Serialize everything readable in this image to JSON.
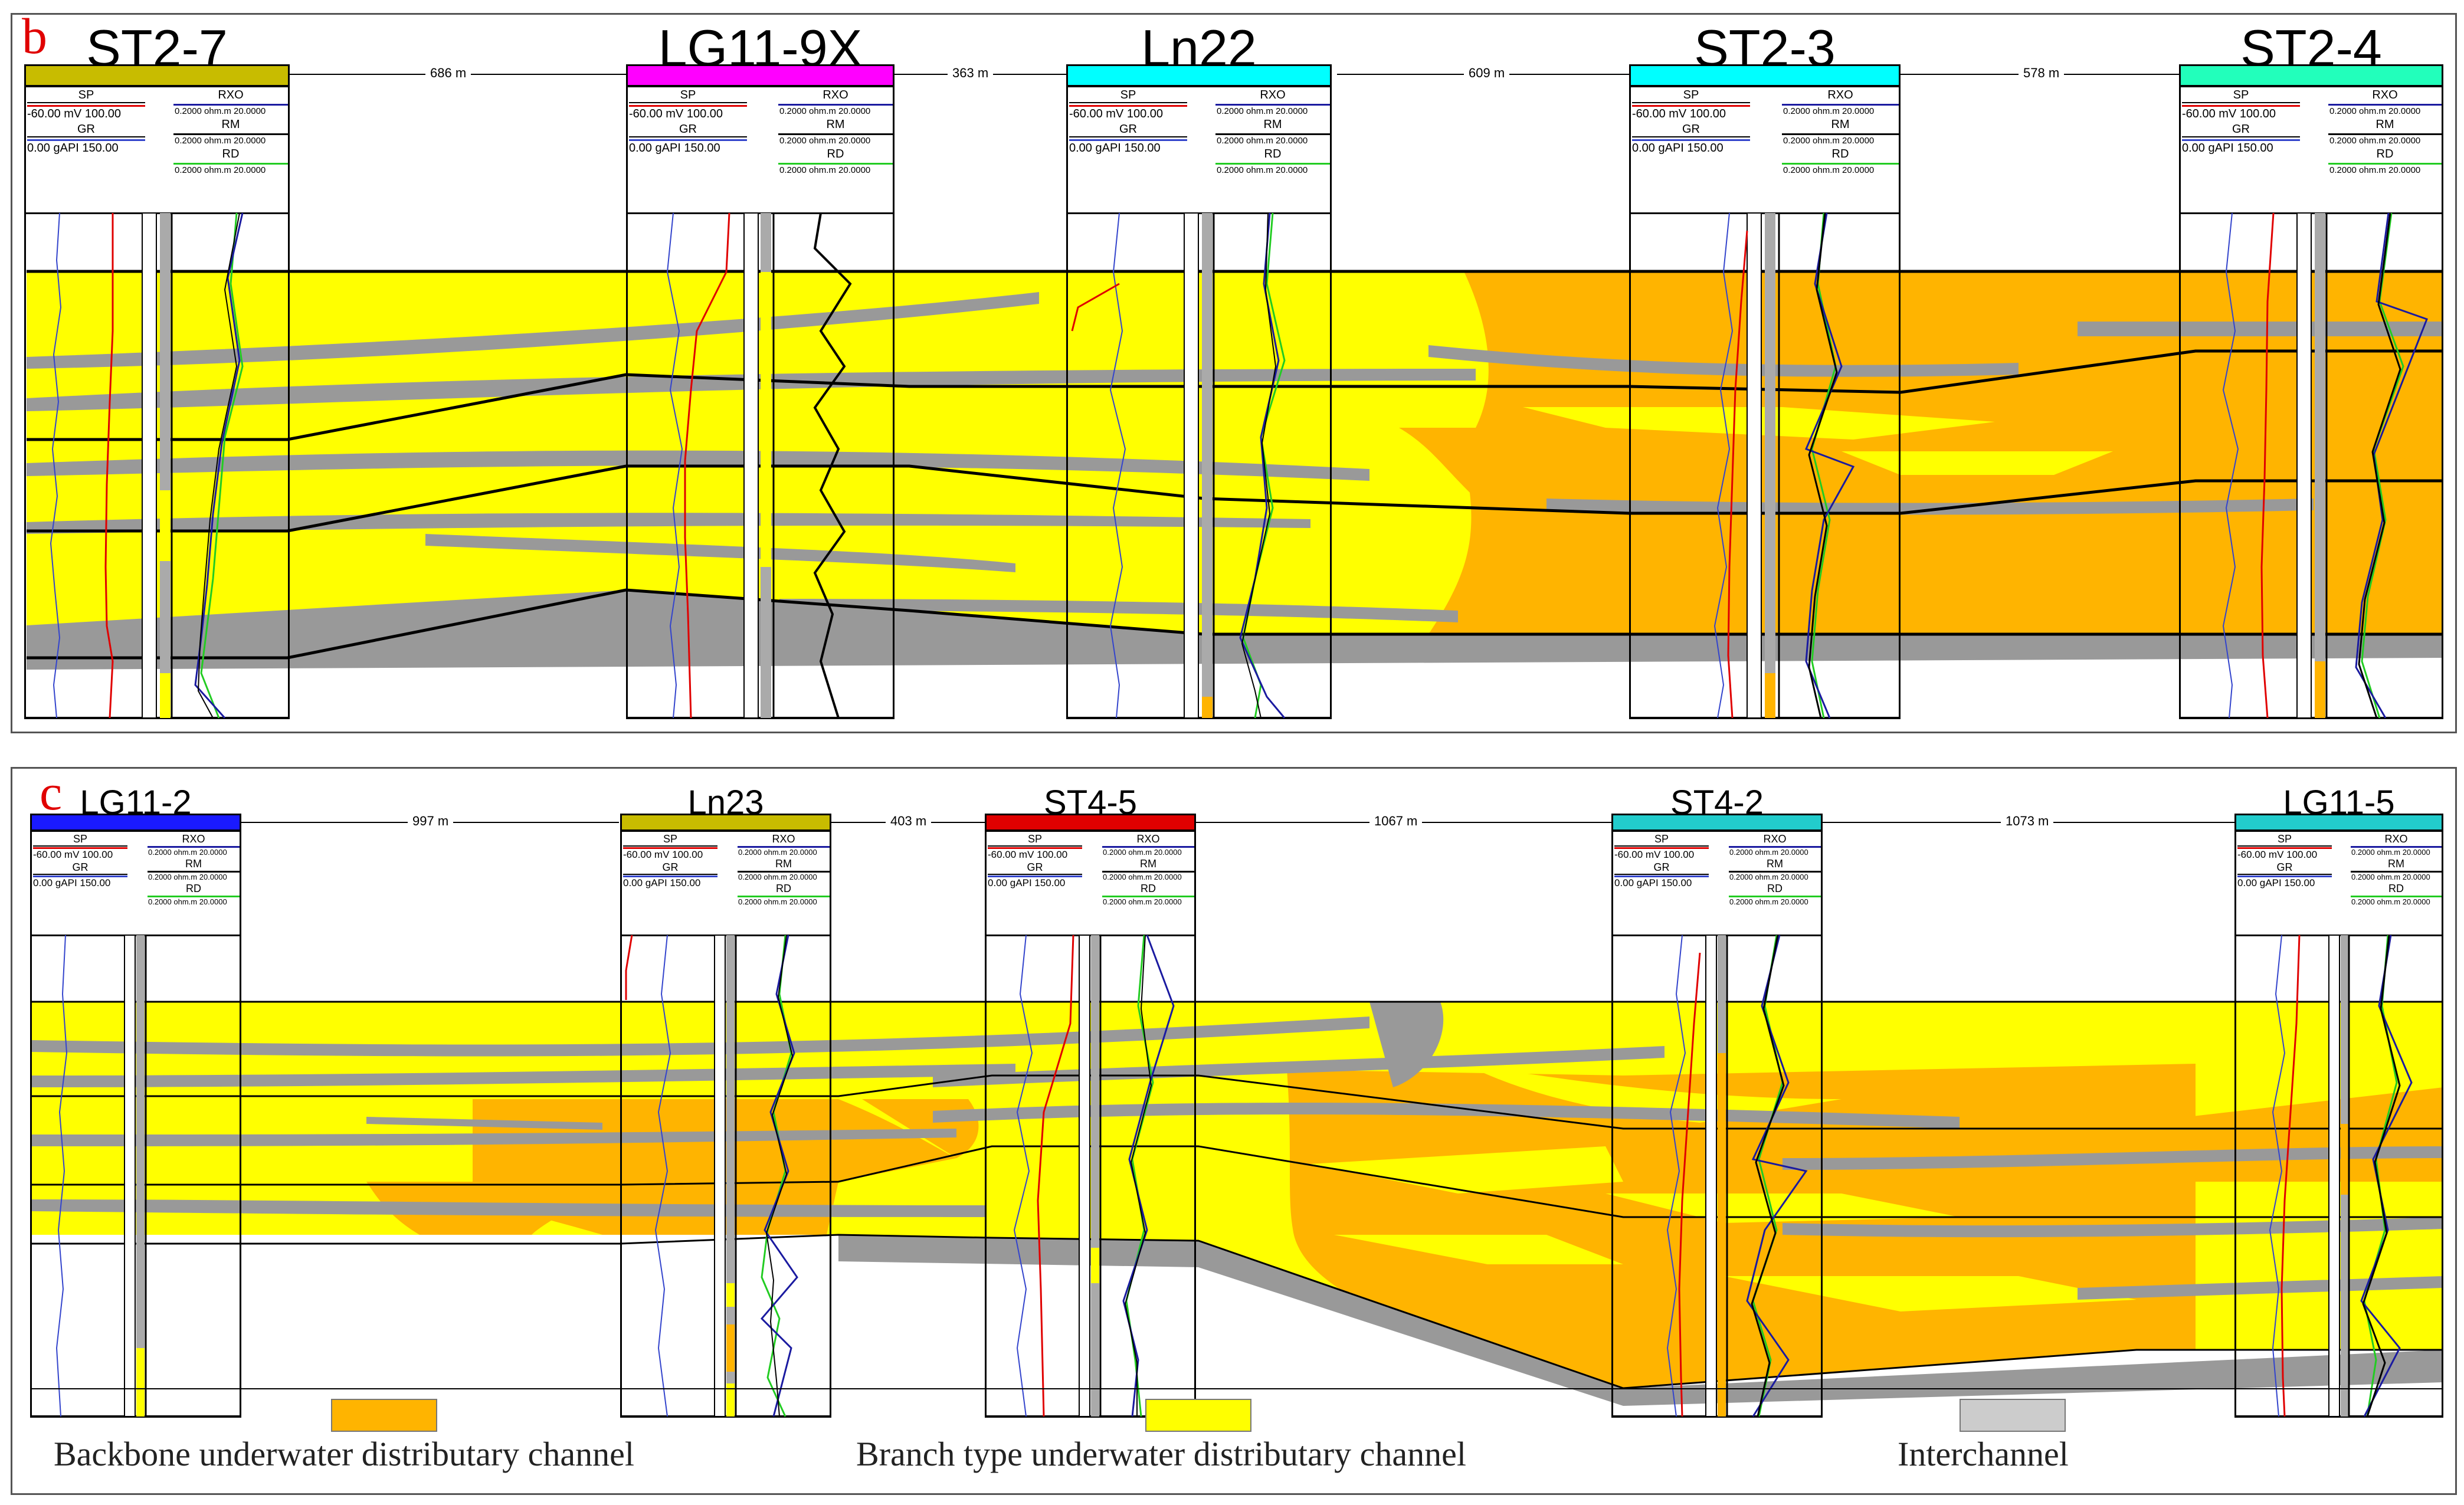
{
  "colors": {
    "backbone": "#ffb400",
    "branch": "#ffff00",
    "interchannel": "#999999",
    "sp_curve": "#e00000",
    "gr_curve": "#3344cc",
    "rxo_curve": "#1a1aa0",
    "rm_curve": "#000000",
    "rd_curve": "#22cc22"
  },
  "header_labels": {
    "sp": "SP",
    "sp_range": "-60.00 mV 100.00",
    "gr": "GR",
    "gr_range": "0.00 gAPI 150.00",
    "rxo": "RXO",
    "rm": "RM",
    "rd": "RD",
    "res_range": "0.2000 ohm.m 20.0000"
  },
  "panel_b": {
    "letter": "b",
    "wells": [
      {
        "name": "ST2-7",
        "color": "#c8bc00"
      },
      {
        "name": "LG11-9X",
        "color": "#ff00ff"
      },
      {
        "name": "Ln22",
        "color": "#00ffff"
      },
      {
        "name": "ST2-3",
        "color": "#00ffff"
      },
      {
        "name": "ST2-4",
        "color": "#22ffbb"
      }
    ],
    "distances": [
      "686 m",
      "363 m",
      "609 m",
      "578 m"
    ]
  },
  "panel_c": {
    "letter": "c",
    "wells": [
      {
        "name": "LG11-2",
        "color": "#1a1aff"
      },
      {
        "name": "Ln23",
        "color": "#c8bc00"
      },
      {
        "name": "ST4-5",
        "color": "#e00000"
      },
      {
        "name": "ST4-2",
        "color": "#22cccc"
      },
      {
        "name": "LG11-5",
        "color": "#22cccc"
      }
    ],
    "distances": [
      "997 m",
      "403 m",
      "1067 m",
      "1073 m"
    ]
  },
  "legend": {
    "backbone_label": "Backbone underwater distributary channel",
    "branch_label": "Branch type  underwater distributary channel",
    "interchannel_label": "Interchannel"
  }
}
